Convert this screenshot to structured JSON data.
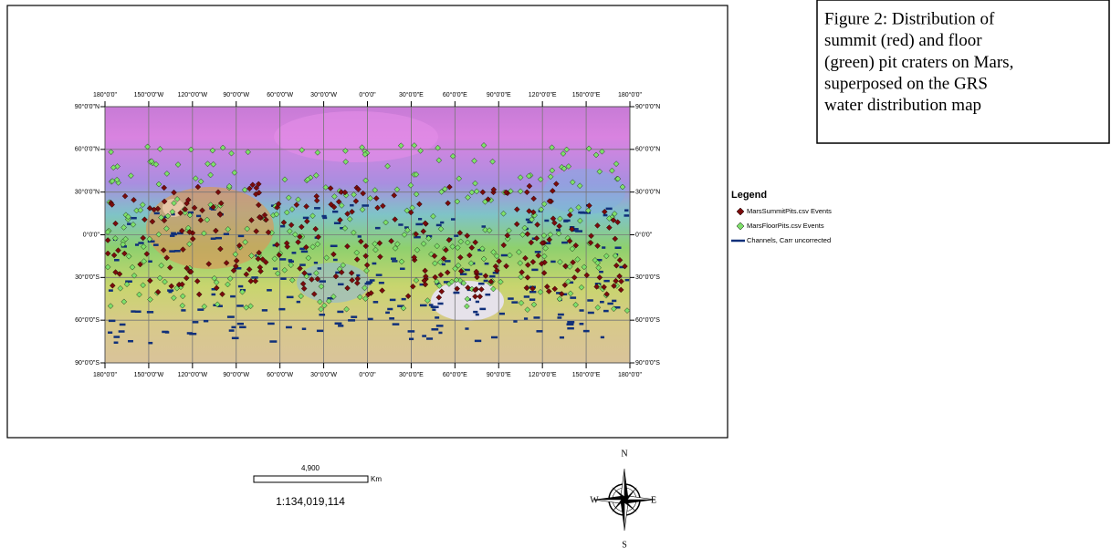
{
  "caption": {
    "lines": [
      "Figure 2:  Distribution of",
      "summit (red) and floor",
      "(green) pit craters on Mars,",
      "superposed on the GRS",
      "water distribution map"
    ]
  },
  "map": {
    "longitude_labels": [
      "180°0'0\"",
      "150°0'0\"W",
      "120°0'0\"W",
      "90°0'0\"W",
      "60°0'0\"W",
      "30°0'0\"W",
      "0°0'0\"",
      "30°0'0\"E",
      "60°0'0\"E",
      "90°0'0\"E",
      "120°0'0\"E",
      "150°0'0\"E",
      "180°0'0\""
    ],
    "latitude_labels": [
      "90°0'0\"N",
      "60°0'0\"N",
      "30°0'0\"N",
      "0°0'0\"",
      "30°0'0\"S",
      "60°0'0\"S",
      "90°0'0\"S"
    ]
  },
  "legend": {
    "title": "Legend",
    "items": [
      "MarsSummitPits.csv Events",
      "MarsFloorPits.csv Events",
      "Channels, Carr uncorrected"
    ]
  },
  "scale_bar": {
    "distance": "4,900",
    "unit": "Km",
    "ratio": "1:134,019,114"
  },
  "compass": {
    "north": "N",
    "east": "E",
    "south": "S",
    "west": "W"
  }
}
